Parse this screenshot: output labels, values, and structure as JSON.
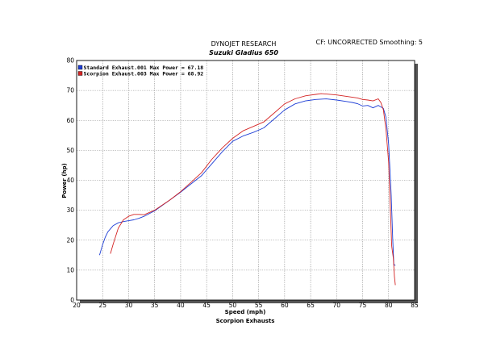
{
  "header": {
    "company": "DYNOJET RESEARCH",
    "subtitle": "Suzuki Gladius 650",
    "right": "CF: UNCORRECTED  Smoothing: 5"
  },
  "chart_data": {
    "type": "line",
    "title": "Suzuki Gladius 650",
    "xlabel": "Speed (mph)",
    "ylabel": "Power (hp)",
    "footer": "Scorpion Exhausts",
    "xlim": [
      20,
      85
    ],
    "ylim": [
      0,
      80
    ],
    "x_ticks": [
      "20",
      "25",
      "30",
      "35",
      "40",
      "45",
      "50",
      "55",
      "60",
      "65",
      "70",
      "75",
      "80",
      "85"
    ],
    "y_ticks": [
      "0",
      "10",
      "20",
      "30",
      "40",
      "50",
      "60",
      "70",
      "80"
    ],
    "grid": true,
    "legend_position": "top-left",
    "series": [
      {
        "name": "Standard Exhaust.001 Max Power = 67.18",
        "color": "#1f3fd6",
        "x": [
          24.4,
          25.0,
          25.5,
          26.0,
          27.0,
          28.0,
          29.0,
          30.0,
          31.0,
          32.0,
          33.0,
          35.0,
          38.0,
          40.0,
          42.0,
          44.0,
          46.0,
          48.0,
          50.0,
          52.0,
          54.0,
          56.0,
          58.0,
          60.0,
          62.0,
          64.0,
          66.0,
          68.0,
          70.0,
          72.0,
          73.0,
          74.0,
          75.0,
          76.0,
          77.0,
          78.0,
          78.5,
          79.0,
          79.5,
          80.0,
          80.5,
          80.8,
          81.0,
          81.3
        ],
        "y": [
          15.0,
          18.5,
          21.0,
          22.8,
          24.8,
          25.8,
          26.2,
          26.5,
          26.8,
          27.3,
          28.0,
          29.8,
          33.5,
          36.0,
          38.8,
          41.5,
          45.5,
          49.5,
          53.0,
          54.8,
          56.0,
          57.5,
          60.5,
          63.5,
          65.5,
          66.5,
          67.0,
          67.18,
          66.8,
          66.3,
          66.0,
          65.6,
          64.8,
          65.0,
          64.2,
          65.0,
          64.5,
          64.0,
          61.0,
          52.0,
          35.0,
          20.0,
          12.0,
          11.5
        ]
      },
      {
        "name": "Scorpion Exhaust.003 Max Power = 68.92",
        "color": "#d42424",
        "x": [
          26.5,
          27.0,
          28.0,
          29.0,
          30.0,
          31.0,
          32.0,
          33.0,
          35.0,
          38.0,
          40.0,
          42.0,
          44.0,
          46.0,
          48.0,
          50.0,
          52.0,
          54.0,
          56.0,
          58.0,
          60.0,
          62.0,
          64.0,
          66.0,
          67.0,
          68.0,
          70.0,
          72.0,
          74.0,
          75.0,
          76.0,
          77.0,
          78.0,
          78.5,
          79.0,
          79.5,
          80.0,
          80.3,
          80.6,
          80.9,
          81.1,
          81.3
        ],
        "y": [
          15.5,
          18.5,
          24.0,
          26.8,
          28.0,
          28.6,
          28.6,
          28.5,
          30.0,
          33.5,
          36.2,
          39.3,
          42.5,
          47.0,
          50.8,
          54.0,
          56.5,
          58.0,
          59.5,
          62.5,
          65.5,
          67.2,
          68.2,
          68.7,
          68.92,
          68.8,
          68.5,
          68.0,
          67.5,
          67.0,
          66.8,
          66.5,
          67.2,
          66.0,
          63.5,
          57.0,
          46.0,
          32.0,
          18.0,
          14.0,
          8.0,
          5.0
        ]
      }
    ]
  }
}
